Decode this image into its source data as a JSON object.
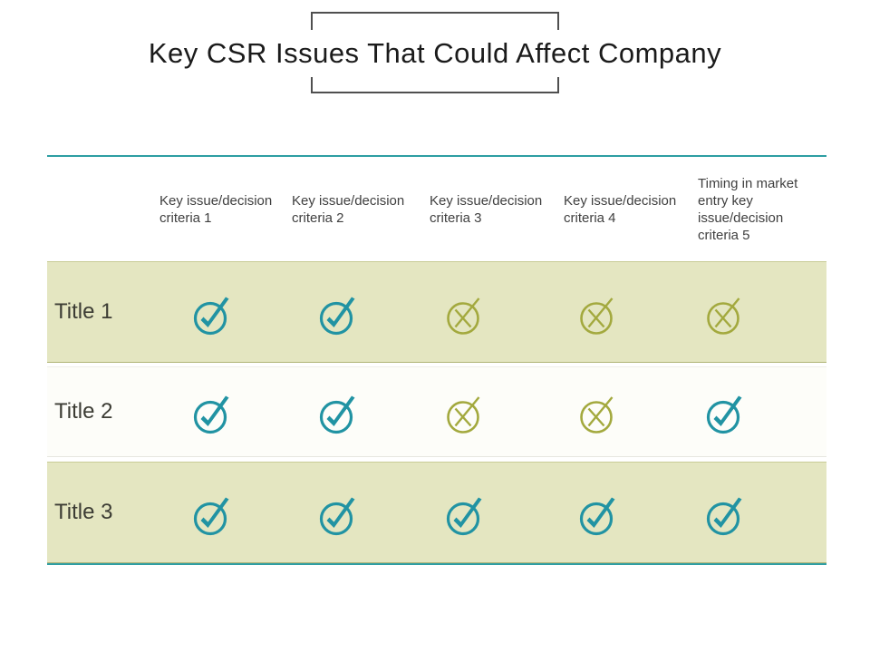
{
  "title": "Key CSR Issues That Could Affect Company",
  "colors": {
    "rule_teal": "#2e9ea3",
    "check_teal": "#2193a3",
    "cross_olive": "#a3a93e",
    "band_khaki": "#e4e6c1",
    "header_text": "#3f3f3f",
    "title_text": "#1b1b1b"
  },
  "table": {
    "columns": [
      {
        "label": "Key issue/decision criteria 1"
      },
      {
        "label": "Key issue/decision criteria 2"
      },
      {
        "label": "Key issue/decision criteria 3"
      },
      {
        "label": "Key issue/decision criteria 4"
      },
      {
        "label": "Timing in market entry key issue/decision criteria 5"
      }
    ],
    "rows": [
      {
        "label": "Title 1",
        "cells": [
          "check",
          "check",
          "cross",
          "cross",
          "cross"
        ]
      },
      {
        "label": "Title 2",
        "cells": [
          "check",
          "check",
          "cross",
          "cross",
          "check"
        ]
      },
      {
        "label": "Title 3",
        "cells": [
          "check",
          "check",
          "check",
          "check",
          "check"
        ]
      }
    ]
  }
}
